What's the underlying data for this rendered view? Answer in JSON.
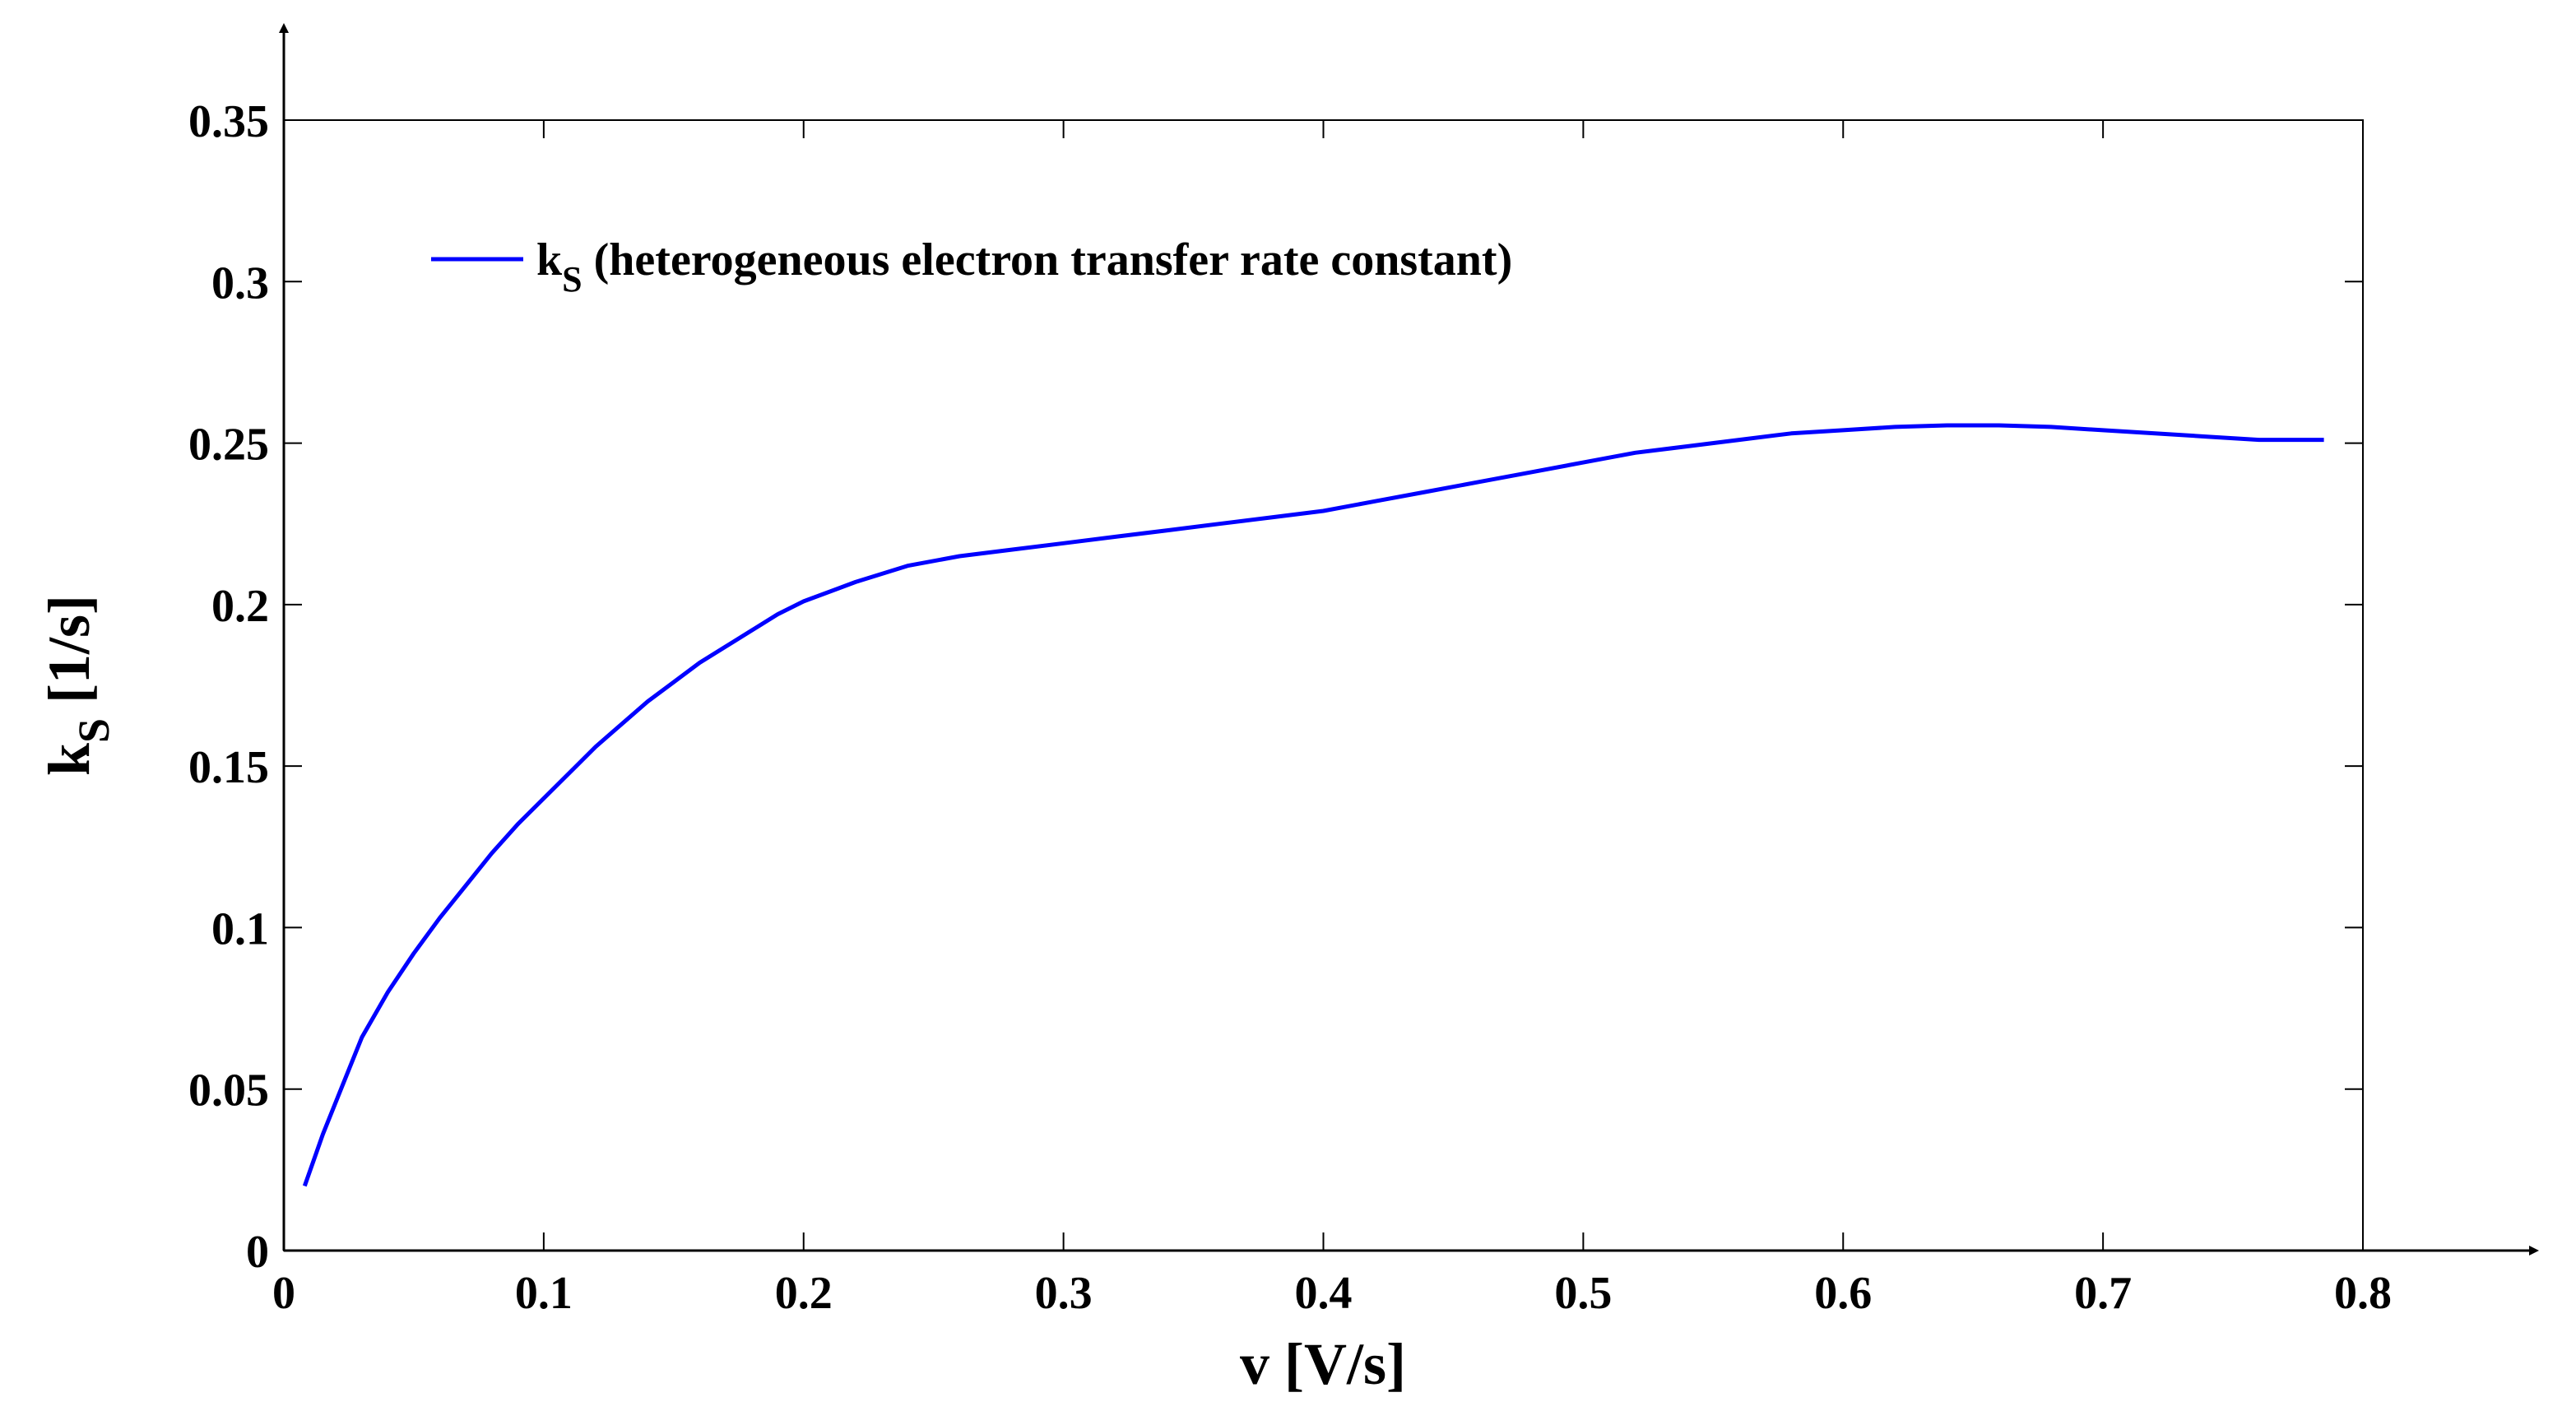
{
  "chart_data": {
    "type": "line",
    "title": "",
    "xlabel": "v [V/s]",
    "ylabel_main": "k",
    "ylabel_sub": "S",
    "ylabel_unit": " [1/s]",
    "xlim": [
      0,
      0.8
    ],
    "ylim": [
      0,
      0.35
    ],
    "xticks": [
      0,
      0.1,
      0.2,
      0.3,
      0.4,
      0.5,
      0.6,
      0.7,
      0.8
    ],
    "xtick_labels": [
      "0",
      "0.1",
      "0.2",
      "0.3",
      "0.4",
      "0.5",
      "0.6",
      "0.7",
      "0.8"
    ],
    "yticks": [
      0,
      0.05,
      0.1,
      0.15,
      0.2,
      0.25,
      0.3,
      0.35
    ],
    "ytick_labels": [
      "0",
      "0.05",
      "0.1",
      "0.15",
      "0.2",
      "0.25",
      "0.3",
      "0.35"
    ],
    "grid": false,
    "legend_position": "top-left",
    "series": [
      {
        "name": "kS (heterogeneous electron transfer rate constant)",
        "legend_main": "k",
        "legend_sub": "S",
        "legend_rest": " (heterogeneous electron transfer rate constant)",
        "color": "#0000ff",
        "x": [
          0.008,
          0.015,
          0.022,
          0.03,
          0.04,
          0.05,
          0.06,
          0.07,
          0.08,
          0.09,
          0.1,
          0.11,
          0.12,
          0.13,
          0.14,
          0.15,
          0.16,
          0.17,
          0.18,
          0.19,
          0.2,
          0.22,
          0.24,
          0.26,
          0.28,
          0.3,
          0.32,
          0.34,
          0.36,
          0.38,
          0.4,
          0.42,
          0.44,
          0.46,
          0.48,
          0.5,
          0.52,
          0.54,
          0.56,
          0.58,
          0.6,
          0.62,
          0.64,
          0.66,
          0.68,
          0.7,
          0.72,
          0.74,
          0.76,
          0.785
        ],
        "y": [
          0.02,
          0.036,
          0.05,
          0.066,
          0.08,
          0.092,
          0.103,
          0.113,
          0.123,
          0.132,
          0.14,
          0.148,
          0.156,
          0.163,
          0.17,
          0.176,
          0.182,
          0.187,
          0.192,
          0.197,
          0.201,
          0.207,
          0.212,
          0.215,
          0.217,
          0.219,
          0.221,
          0.223,
          0.225,
          0.227,
          0.229,
          0.232,
          0.235,
          0.238,
          0.241,
          0.244,
          0.247,
          0.249,
          0.251,
          0.253,
          0.254,
          0.255,
          0.2555,
          0.2555,
          0.255,
          0.254,
          0.253,
          0.252,
          0.251,
          0.251
        ]
      }
    ]
  }
}
